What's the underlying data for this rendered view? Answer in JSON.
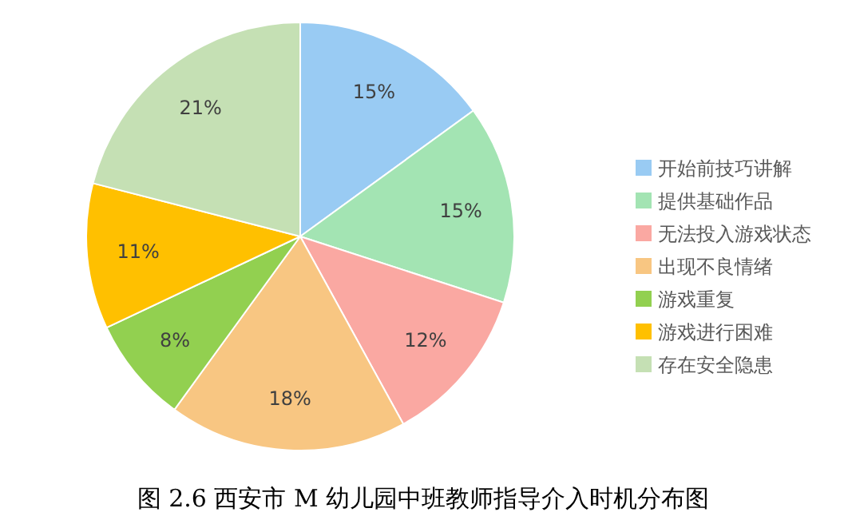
{
  "chart_data": {
    "type": "pie",
    "title": "图 2.6 西安市 M 幼儿园中班教师指导介入时机分布图",
    "categories": [
      "开始前技巧讲解",
      "提供基础作品",
      "无法投入游戏状态",
      "出现不良情绪",
      "游戏重复",
      "游戏进行困难",
      "存在安全隐患"
    ],
    "values": [
      15,
      15,
      12,
      18,
      8,
      11,
      21
    ],
    "colors": [
      "#99cbf3",
      "#a3e4b3",
      "#faa8a2",
      "#f8c682",
      "#92d050",
      "#ffc000",
      "#c5e0b4"
    ],
    "value_labels": [
      "15%",
      "15%",
      "12%",
      "18%",
      "8%",
      "11%",
      "21%"
    ],
    "legend": "right"
  }
}
